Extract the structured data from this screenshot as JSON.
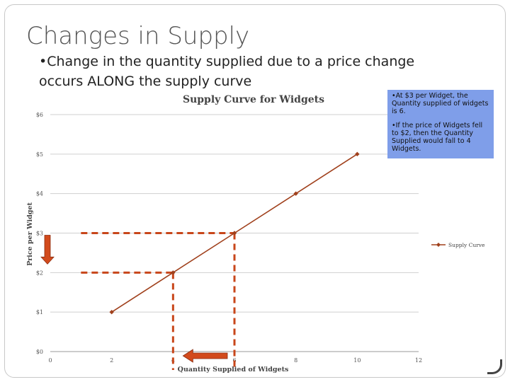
{
  "slide": {
    "title": "Changes in Supply",
    "bullet": "•Change in the quantity supplied due to a price change occurs ALONG the supply curve",
    "callout": [
      "•At $3 per Widget, the Quantity supplied of widgets is 6.",
      "•If the price of Widgets fell to $2, then the Quantity Supplied would fall to 4 Widgets."
    ]
  },
  "chart_data": {
    "type": "line",
    "title": "Supply Curve for Widgets",
    "xlabel": "Quantity Supplied of Widgets",
    "ylabel": "Price per Widget",
    "xlim": [
      0,
      12
    ],
    "ylim": [
      0,
      6
    ],
    "x_ticks": [
      "0",
      "2",
      "4",
      "6",
      "8",
      "10",
      "12"
    ],
    "y_ticks": [
      "$0",
      "$1",
      "$2",
      "$3",
      "$4",
      "$5",
      "$6"
    ],
    "grid": "horizontal",
    "legend_position": "right",
    "series": [
      {
        "name": "Supply Curve",
        "x": [
          2,
          4,
          6,
          8,
          10
        ],
        "y": [
          1,
          2,
          3,
          4,
          5
        ],
        "color": "#a0401c"
      }
    ],
    "annotations": [
      {
        "kind": "dashed-guide",
        "x": 6,
        "y": 3,
        "color": "#c8461a"
      },
      {
        "kind": "dashed-guide",
        "x": 4,
        "y": 2,
        "color": "#c8461a"
      },
      {
        "kind": "arrow-down",
        "from_y": 3,
        "to_y": 2,
        "color": "#d24a1c"
      },
      {
        "kind": "arrow-left",
        "from_x": 6,
        "to_x": 4,
        "color": "#d24a1c"
      }
    ]
  }
}
